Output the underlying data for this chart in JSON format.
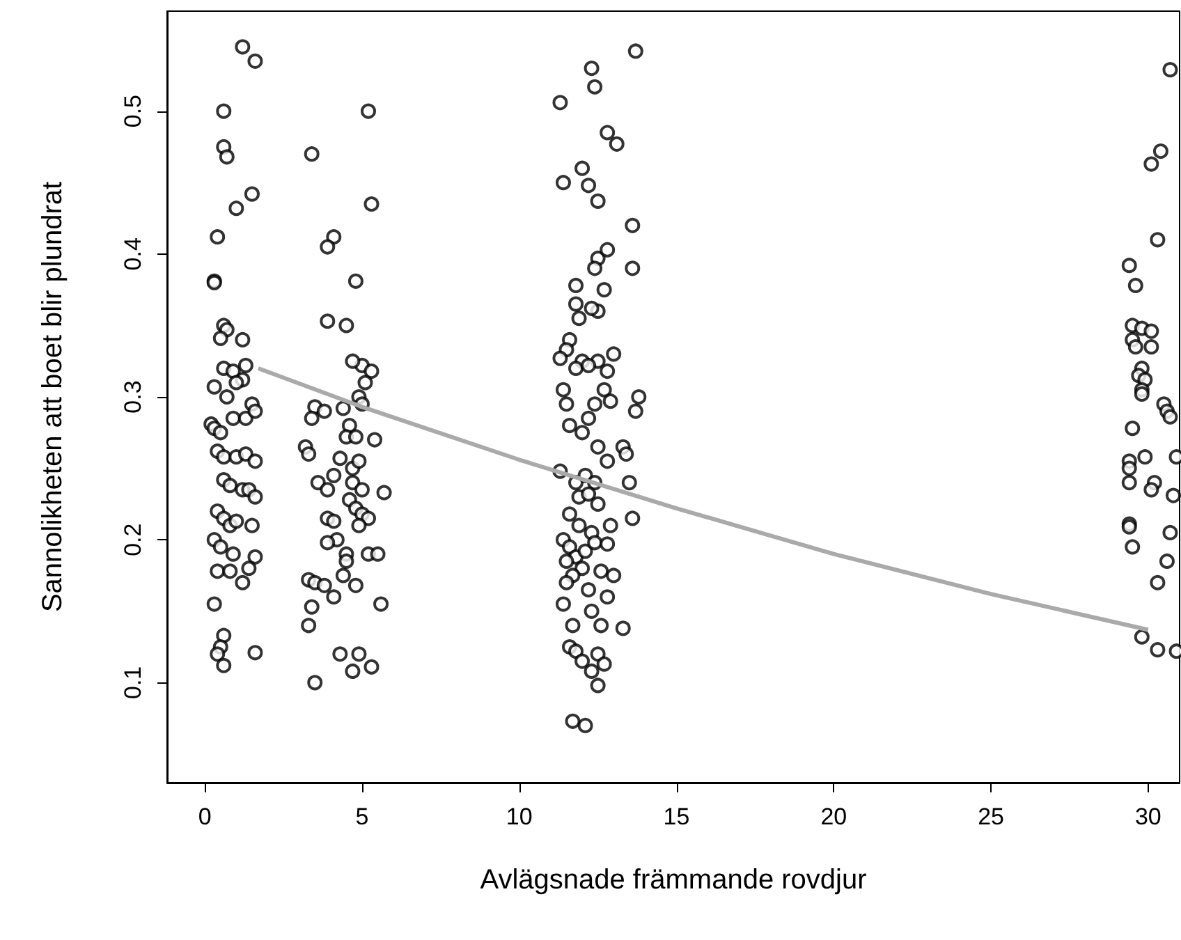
{
  "chart_data": {
    "type": "scatter",
    "xlabel": "Avlägsnade främmande rovdjur",
    "ylabel": "Sannolikheten att boet blir plundrat",
    "xlim": [
      -1.2,
      31
    ],
    "ylim": [
      0.03,
      0.57
    ],
    "xticks": [
      0,
      5,
      10,
      15,
      20,
      25,
      30
    ],
    "yticks": [
      0.1,
      0.2,
      0.3,
      0.4,
      0.5
    ],
    "series": [
      {
        "marker": "circle",
        "color": "#000000",
        "x": [
          1.2,
          1.6,
          0.6,
          0.6,
          0.7,
          1.5,
          1.0,
          0.4,
          0.3,
          0.3,
          0.6,
          0.7,
          0.5,
          1.2,
          0.6,
          0.9,
          1.3,
          1.2,
          1.0,
          0.3,
          0.7,
          0.2,
          0.3,
          0.5,
          0.9,
          1.3,
          1.5,
          1.6,
          0.4,
          0.6,
          1.0,
          1.3,
          1.6,
          0.6,
          0.8,
          1.2,
          1.4,
          1.6,
          0.4,
          0.6,
          0.8,
          1.0,
          1.5,
          0.3,
          0.5,
          0.9,
          1.6,
          0.4,
          0.8,
          1.2,
          1.4,
          0.3,
          0.6,
          0.5,
          0.4,
          1.6,
          0.6,
          3.4,
          5.2,
          5.3,
          4.1,
          3.9,
          4.8,
          3.9,
          4.5,
          5.0,
          4.7,
          5.3,
          5.1,
          4.9,
          5.0,
          3.5,
          3.8,
          4.4,
          4.6,
          3.4,
          4.5,
          4.8,
          5.4,
          3.2,
          3.3,
          4.3,
          4.7,
          4.9,
          4.1,
          3.6,
          3.9,
          4.7,
          5.0,
          5.7,
          4.6,
          3.9,
          4.1,
          4.8,
          5.0,
          5.2,
          4.9,
          4.2,
          3.9,
          4.5,
          4.5,
          5.2,
          5.5,
          3.3,
          3.5,
          3.8,
          4.4,
          4.8,
          4.1,
          3.4,
          5.6,
          3.3,
          4.3,
          4.9,
          4.7,
          5.3,
          3.5,
          13.7,
          12.3,
          12.4,
          11.3,
          12.8,
          13.1,
          12.0,
          11.4,
          12.2,
          12.5,
          13.6,
          12.5,
          12.8,
          12.4,
          13.6,
          11.8,
          12.7,
          11.8,
          12.5,
          12.3,
          11.9,
          11.6,
          11.5,
          12.0,
          12.5,
          12.8,
          13.0,
          11.3,
          11.8,
          12.2,
          12.7,
          12.9,
          13.8,
          11.4,
          11.5,
          12.2,
          12.4,
          13.7,
          11.6,
          12.0,
          12.5,
          13.3,
          13.4,
          12.8,
          11.3,
          11.8,
          12.1,
          12.4,
          13.5,
          11.9,
          12.2,
          12.5,
          13.6,
          11.6,
          11.9,
          12.3,
          12.9,
          11.4,
          11.6,
          11.8,
          12.1,
          12.4,
          12.8,
          11.5,
          12.0,
          12.6,
          13.0,
          11.7,
          11.5,
          12.2,
          12.8,
          11.4,
          12.3,
          11.7,
          12.6,
          13.3,
          11.6,
          11.8,
          12.5,
          12.0,
          12.7,
          12.3,
          12.5,
          11.7,
          12.1,
          30.7,
          30.4,
          30.1,
          30.3,
          29.4,
          29.6,
          29.5,
          29.8,
          30.1,
          29.5,
          29.6,
          30.1,
          29.8,
          29.7,
          29.9,
          29.8,
          29.8,
          30.5,
          30.6,
          30.7,
          29.5,
          29.9,
          30.9,
          29.4,
          29.4,
          29.4,
          30.2,
          30.1,
          30.8,
          29.4,
          29.4,
          30.7,
          29.5,
          30.6,
          30.3,
          29.8,
          30.3,
          30.9
        ],
        "values": [
          0.545,
          0.535,
          0.5,
          0.475,
          0.468,
          0.442,
          0.432,
          0.412,
          0.381,
          0.38,
          0.35,
          0.347,
          0.341,
          0.34,
          0.32,
          0.318,
          0.322,
          0.312,
          0.31,
          0.307,
          0.3,
          0.281,
          0.278,
          0.275,
          0.285,
          0.285,
          0.295,
          0.29,
          0.262,
          0.258,
          0.258,
          0.26,
          0.255,
          0.242,
          0.238,
          0.235,
          0.235,
          0.23,
          0.22,
          0.215,
          0.21,
          0.213,
          0.21,
          0.2,
          0.195,
          0.19,
          0.188,
          0.178,
          0.178,
          0.17,
          0.18,
          0.155,
          0.133,
          0.125,
          0.12,
          0.121,
          0.112,
          0.47,
          0.5,
          0.435,
          0.412,
          0.405,
          0.381,
          0.353,
          0.35,
          0.322,
          0.325,
          0.318,
          0.31,
          0.3,
          0.295,
          0.293,
          0.29,
          0.292,
          0.28,
          0.285,
          0.272,
          0.272,
          0.27,
          0.265,
          0.26,
          0.257,
          0.25,
          0.255,
          0.245,
          0.24,
          0.235,
          0.24,
          0.235,
          0.233,
          0.228,
          0.215,
          0.213,
          0.222,
          0.218,
          0.215,
          0.21,
          0.2,
          0.198,
          0.19,
          0.185,
          0.19,
          0.19,
          0.172,
          0.17,
          0.168,
          0.175,
          0.168,
          0.16,
          0.153,
          0.155,
          0.14,
          0.12,
          0.12,
          0.108,
          0.111,
          0.1,
          0.542,
          0.53,
          0.517,
          0.506,
          0.485,
          0.477,
          0.46,
          0.45,
          0.448,
          0.437,
          0.42,
          0.397,
          0.403,
          0.39,
          0.39,
          0.378,
          0.375,
          0.365,
          0.36,
          0.362,
          0.355,
          0.34,
          0.333,
          0.325,
          0.325,
          0.318,
          0.33,
          0.327,
          0.32,
          0.322,
          0.305,
          0.297,
          0.3,
          0.305,
          0.295,
          0.285,
          0.295,
          0.29,
          0.28,
          0.275,
          0.265,
          0.265,
          0.26,
          0.255,
          0.248,
          0.24,
          0.245,
          0.24,
          0.24,
          0.23,
          0.232,
          0.225,
          0.215,
          0.218,
          0.21,
          0.205,
          0.21,
          0.2,
          0.195,
          0.188,
          0.192,
          0.198,
          0.197,
          0.185,
          0.18,
          0.178,
          0.175,
          0.175,
          0.17,
          0.165,
          0.16,
          0.155,
          0.15,
          0.14,
          0.14,
          0.138,
          0.125,
          0.122,
          0.12,
          0.115,
          0.113,
          0.108,
          0.098,
          0.073,
          0.07,
          0.529,
          0.472,
          0.463,
          0.41,
          0.392,
          0.378,
          0.35,
          0.348,
          0.346,
          0.34,
          0.335,
          0.335,
          0.32,
          0.315,
          0.312,
          0.305,
          0.302,
          0.295,
          0.29,
          0.286,
          0.278,
          0.258,
          0.258,
          0.255,
          0.25,
          0.24,
          0.24,
          0.235,
          0.231,
          0.211,
          0.209,
          0.205,
          0.195,
          0.185,
          0.17,
          0.132,
          0.123,
          0.122
        ]
      },
      {
        "type": "line",
        "color": "#aaaaaa",
        "x": [
          1.7,
          5,
          10,
          15,
          20,
          25,
          30
        ],
        "values": [
          0.32,
          0.293,
          0.256,
          0.222,
          0.19,
          0.162,
          0.137
        ]
      }
    ]
  }
}
